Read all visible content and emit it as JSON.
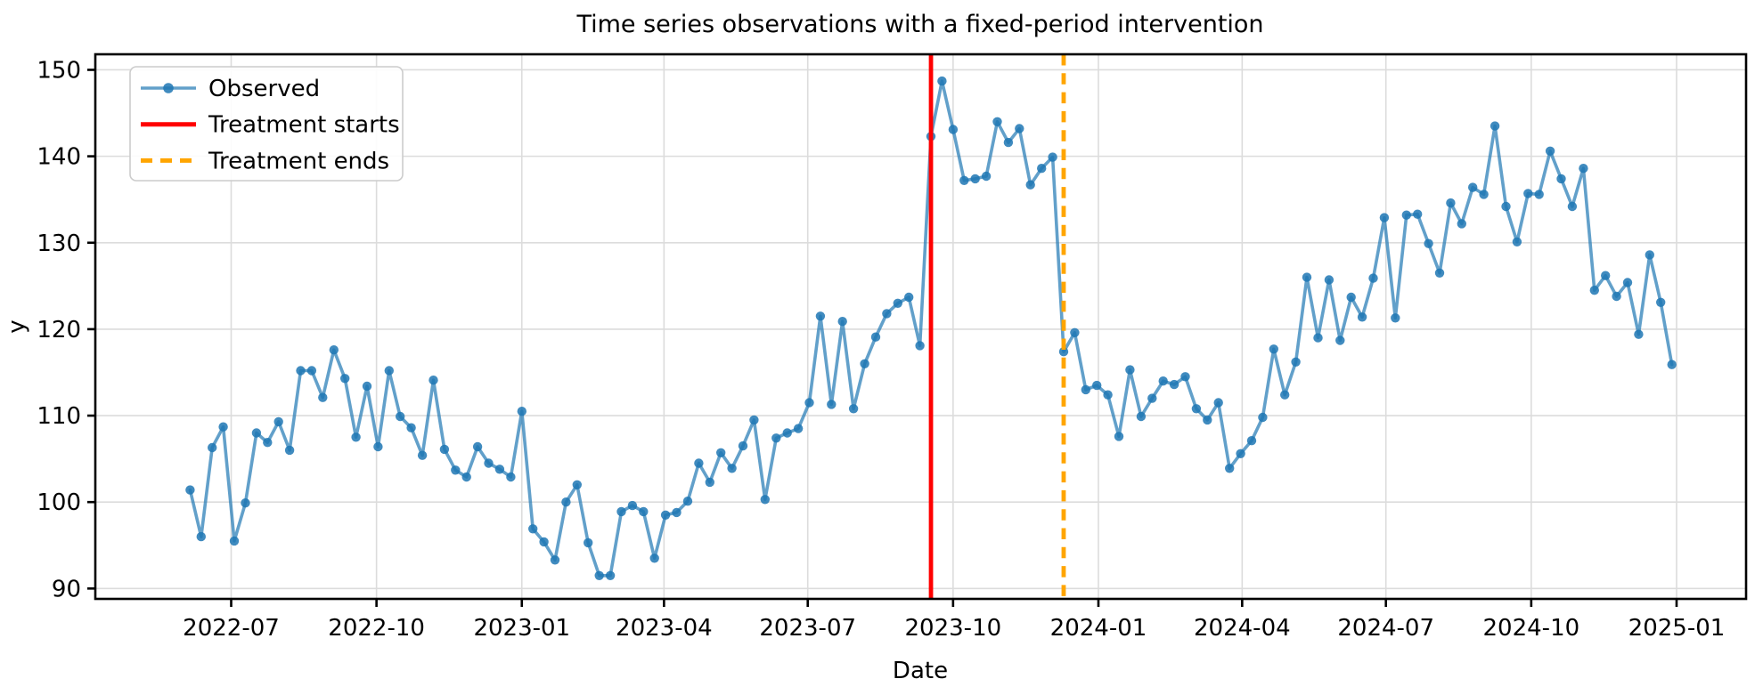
{
  "figure": {
    "title": "Time series observations with a fixed-period intervention",
    "xlabel": "Date",
    "ylabel": "y"
  },
  "chart_data": {
    "type": "line",
    "title": "Time series observations with a fixed-period intervention",
    "xlabel": "Date",
    "ylabel": "y",
    "grid": true,
    "legend_position": "upper left",
    "ylim": [
      88.8,
      151.8
    ],
    "xlim": [
      "2022-04-06",
      "2025-02-14"
    ],
    "yticks": [
      90,
      100,
      110,
      120,
      130,
      140,
      150
    ],
    "xticks": [
      {
        "label": "2022-07",
        "date": "2022-07-01"
      },
      {
        "label": "2022-10",
        "date": "2022-10-01"
      },
      {
        "label": "2023-01",
        "date": "2023-01-01"
      },
      {
        "label": "2023-04",
        "date": "2023-04-01"
      },
      {
        "label": "2023-07",
        "date": "2023-07-01"
      },
      {
        "label": "2023-10",
        "date": "2023-10-01"
      },
      {
        "label": "2024-01",
        "date": "2024-01-01"
      },
      {
        "label": "2024-04",
        "date": "2024-04-01"
      },
      {
        "label": "2024-07",
        "date": "2024-07-01"
      },
      {
        "label": "2024-10",
        "date": "2024-10-01"
      },
      {
        "label": "2025-01",
        "date": "2025-01-01"
      }
    ],
    "x": [
      "2022-06-05",
      "2022-06-12",
      "2022-06-19",
      "2022-06-26",
      "2022-07-03",
      "2022-07-10",
      "2022-07-17",
      "2022-07-24",
      "2022-07-31",
      "2022-08-07",
      "2022-08-14",
      "2022-08-21",
      "2022-08-28",
      "2022-09-04",
      "2022-09-11",
      "2022-09-18",
      "2022-09-25",
      "2022-10-02",
      "2022-10-09",
      "2022-10-16",
      "2022-10-23",
      "2022-10-30",
      "2022-11-06",
      "2022-11-13",
      "2022-11-20",
      "2022-11-27",
      "2022-12-04",
      "2022-12-11",
      "2022-12-18",
      "2022-12-25",
      "2023-01-01",
      "2023-01-08",
      "2023-01-15",
      "2023-01-22",
      "2023-01-29",
      "2023-02-05",
      "2023-02-12",
      "2023-02-19",
      "2023-02-26",
      "2023-03-05",
      "2023-03-12",
      "2023-03-19",
      "2023-03-26",
      "2023-04-02",
      "2023-04-09",
      "2023-04-16",
      "2023-04-23",
      "2023-04-30",
      "2023-05-07",
      "2023-05-14",
      "2023-05-21",
      "2023-05-28",
      "2023-06-04",
      "2023-06-11",
      "2023-06-18",
      "2023-06-25",
      "2023-07-02",
      "2023-07-09",
      "2023-07-16",
      "2023-07-23",
      "2023-07-30",
      "2023-08-06",
      "2023-08-13",
      "2023-08-20",
      "2023-08-27",
      "2023-09-03",
      "2023-09-10",
      "2023-09-17",
      "2023-09-24",
      "2023-10-01",
      "2023-10-08",
      "2023-10-15",
      "2023-10-22",
      "2023-10-29",
      "2023-11-05",
      "2023-11-12",
      "2023-11-19",
      "2023-11-26",
      "2023-12-03",
      "2023-12-10",
      "2023-12-17",
      "2023-12-24",
      "2023-12-31",
      "2024-01-07",
      "2024-01-14",
      "2024-01-21",
      "2024-01-28",
      "2024-02-04",
      "2024-02-11",
      "2024-02-18",
      "2024-02-25",
      "2024-03-03",
      "2024-03-10",
      "2024-03-17",
      "2024-03-24",
      "2024-03-31",
      "2024-04-07",
      "2024-04-14",
      "2024-04-21",
      "2024-04-28",
      "2024-05-05",
      "2024-05-12",
      "2024-05-19",
      "2024-05-26",
      "2024-06-02",
      "2024-06-09",
      "2024-06-16",
      "2024-06-23",
      "2024-06-30",
      "2024-07-07",
      "2024-07-14",
      "2024-07-21",
      "2024-07-28",
      "2024-08-04",
      "2024-08-11",
      "2024-08-18",
      "2024-08-25",
      "2024-09-01",
      "2024-09-08",
      "2024-09-15",
      "2024-09-22",
      "2024-09-29",
      "2024-10-06",
      "2024-10-13",
      "2024-10-20",
      "2024-10-27",
      "2024-11-03",
      "2024-11-10",
      "2024-11-17",
      "2024-11-24",
      "2024-12-01",
      "2024-12-08",
      "2024-12-15",
      "2024-12-22",
      "2024-12-29"
    ],
    "series": [
      {
        "name": "Observed",
        "values": [
          101.4,
          96.0,
          106.3,
          108.7,
          95.5,
          99.9,
          108.0,
          106.9,
          109.3,
          106.0,
          115.2,
          115.2,
          112.1,
          117.6,
          114.3,
          107.5,
          113.4,
          106.4,
          115.2,
          109.9,
          108.6,
          105.4,
          114.1,
          106.1,
          103.7,
          102.9,
          106.4,
          104.5,
          103.8,
          102.9,
          110.5,
          96.9,
          95.4,
          93.3,
          100.0,
          102.0,
          95.3,
          91.5,
          91.5,
          98.9,
          99.6,
          98.9,
          93.5,
          98.5,
          98.8,
          100.1,
          104.5,
          102.3,
          105.7,
          103.9,
          106.5,
          109.5,
          100.3,
          107.4,
          108.0,
          108.5,
          111.5,
          121.5,
          111.3,
          120.9,
          110.8,
          116.0,
          119.1,
          121.8,
          123.0,
          123.7,
          118.1,
          142.3,
          148.7,
          143.1,
          137.2,
          137.4,
          137.7,
          144.0,
          141.6,
          143.2,
          136.7,
          138.6,
          139.9,
          117.4,
          119.6,
          113.0,
          113.5,
          112.4,
          107.6,
          115.3,
          109.9,
          112.0,
          114.0,
          113.6,
          114.5,
          110.8,
          109.5,
          111.5,
          103.9,
          105.6,
          107.1,
          109.8,
          117.7,
          112.4,
          116.2,
          126.0,
          119.0,
          125.7,
          118.7,
          123.7,
          121.4,
          125.9,
          132.9,
          121.3,
          133.2,
          133.3,
          129.9,
          126.5,
          134.6,
          132.2,
          136.4,
          135.6,
          143.5,
          134.2,
          130.1,
          135.7,
          135.6,
          140.6,
          137.4,
          134.2,
          138.6,
          124.5,
          126.2,
          123.8,
          125.4,
          119.4,
          128.6,
          123.1,
          115.9
        ]
      }
    ],
    "axvlines": [
      {
        "label": "Treatment starts",
        "date": "2023-09-17",
        "color": "#ff0000",
        "style": "solid"
      },
      {
        "label": "Treatment ends",
        "date": "2023-12-10",
        "color": "#ffa500",
        "style": "dashed"
      }
    ],
    "legend_items": [
      {
        "label": "Observed",
        "swatch": "line-marker",
        "color": "#1f77b4"
      },
      {
        "label": "Treatment starts",
        "swatch": "line",
        "color": "#ff0000"
      },
      {
        "label": "Treatment ends",
        "swatch": "dashed-line",
        "color": "#ffa500"
      }
    ],
    "colors": {
      "observed": "#1f77b4",
      "treatment_start": "#ff0000",
      "treatment_end": "#ffa500",
      "grid": "#dcdcdc",
      "spine": "#000000",
      "legend_border": "#cccccc",
      "background": "#ffffff"
    }
  }
}
